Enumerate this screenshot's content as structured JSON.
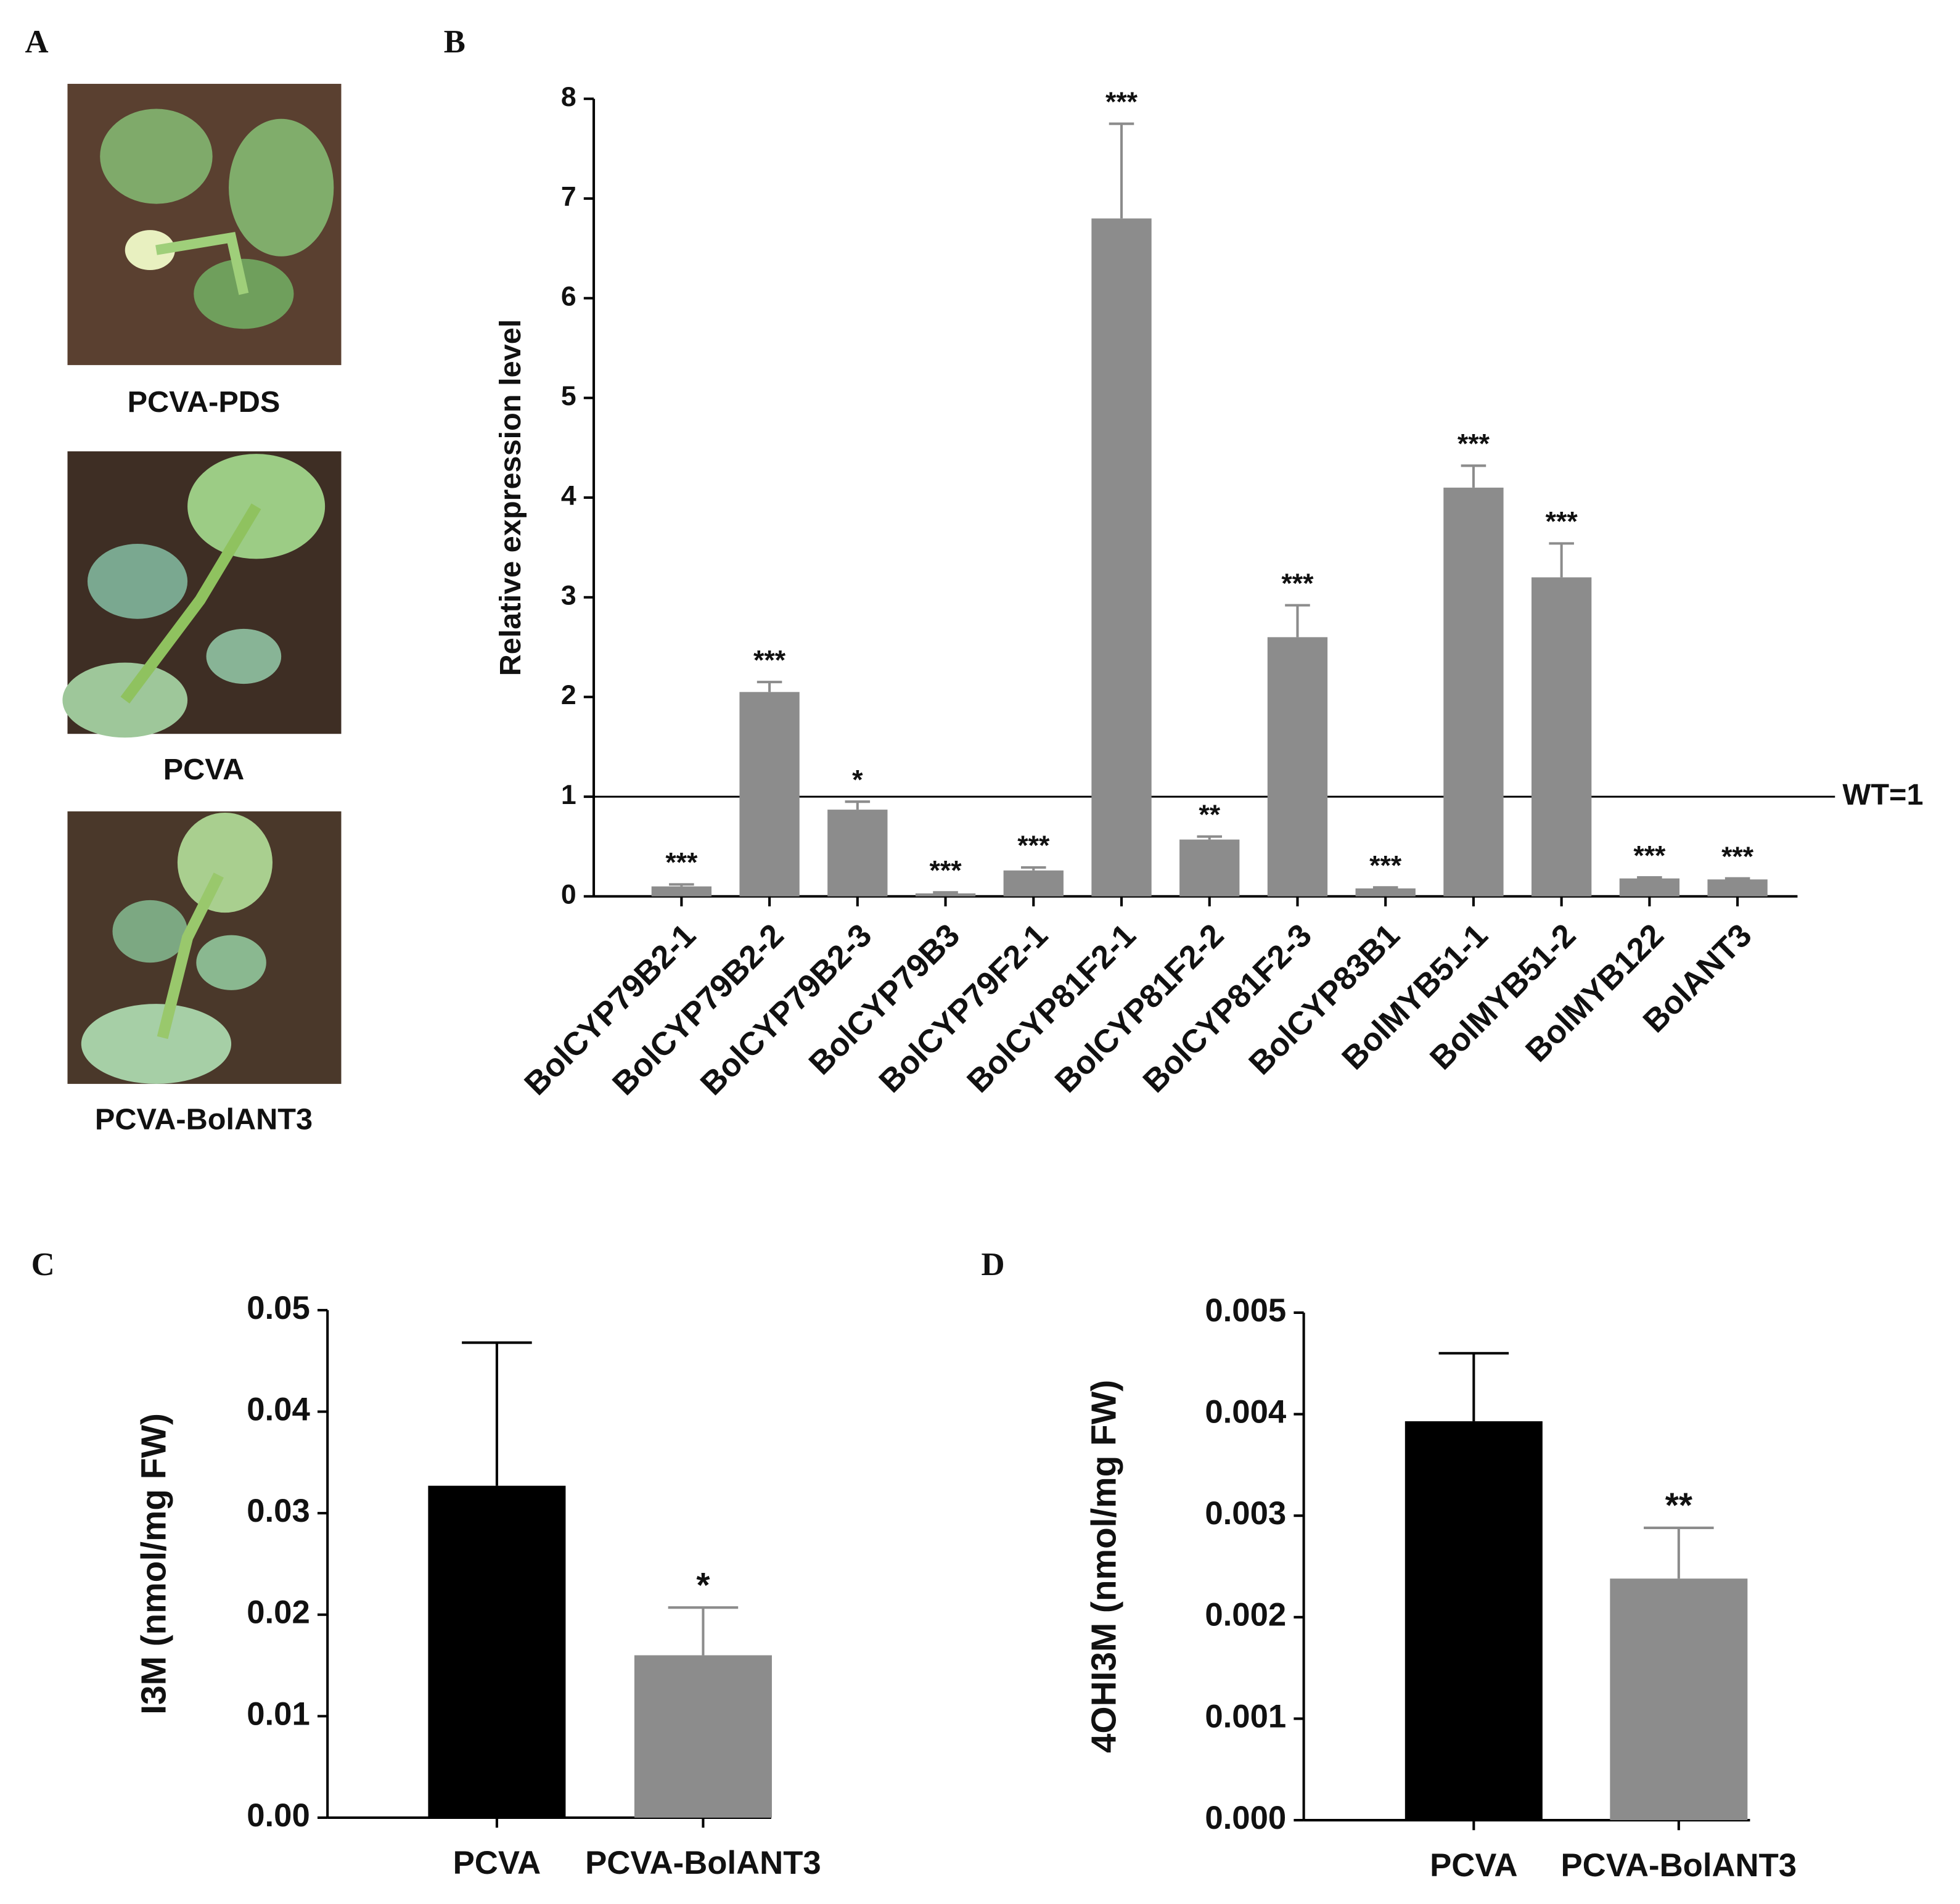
{
  "photo_panel": {
    "panel_label": "A",
    "captions": [
      "PCVA-PDS",
      "PCVA",
      "PCVA-BolANT3"
    ]
  },
  "chart_data": [
    {
      "type": "bar",
      "panel_label": "B",
      "y_label": "Relative expression level",
      "categories": [
        "BolCYP79B2-1",
        "BolCYP79B2-2",
        "BolCYP79B2-3",
        "BolCYP79B3",
        "BolCYP79F2-1",
        "BolCYP81F2-1",
        "BolCYP81F2-2",
        "BolCYP81F2-3",
        "BolCYP83B1",
        "BolMYB51-1",
        "BolMYB51-2",
        "BolMYB122",
        "BolANT3"
      ],
      "values": [
        0.1,
        2.05,
        0.87,
        0.03,
        0.26,
        6.8,
        0.57,
        2.6,
        0.08,
        4.1,
        3.2,
        0.18,
        0.17
      ],
      "errors": [
        0.02,
        0.1,
        0.08,
        0.01,
        0.03,
        0.95,
        0.03,
        0.32,
        0.01,
        0.22,
        0.34,
        0.01,
        0.01
      ],
      "significance": [
        "***",
        "***",
        "*",
        "***",
        "***",
        "***",
        "**",
        "***",
        "***",
        "***",
        "***",
        "***",
        "***"
      ],
      "colors": [
        "#8c8c8c"
      ],
      "reference_line": {
        "value": 1,
        "label": "WT=1"
      },
      "ylim": [
        0,
        8
      ],
      "yticks": [
        0,
        1,
        2,
        3,
        4,
        5,
        6,
        7,
        8
      ]
    },
    {
      "type": "bar",
      "panel_label": "C",
      "y_label": "I3M (nmol/mg FW)",
      "categories": [
        "PCVA",
        "PCVA-BolANT3"
      ],
      "values": [
        0.0327,
        0.016
      ],
      "errors": [
        0.0141,
        0.0047
      ],
      "significance": [
        null,
        "*"
      ],
      "colors": [
        "#000000",
        "#8c8c8c"
      ],
      "ylim": [
        0,
        0.05
      ],
      "yticks": [
        {
          "value": 0,
          "label": "0.00"
        },
        0.01,
        0.02,
        0.03,
        0.04,
        0.05
      ]
    },
    {
      "type": "bar",
      "panel_label": "D",
      "y_label": "4OHI3M (nmol/mg FW)",
      "categories": [
        "PCVA",
        "PCVA-BolANT3"
      ],
      "values": [
        0.00393,
        0.00238
      ],
      "errors": [
        0.00067,
        0.0005
      ],
      "significance": [
        null,
        "**"
      ],
      "colors": [
        "#000000",
        "#8c8c8c"
      ],
      "ylim": [
        0,
        0.005
      ],
      "yticks": [
        {
          "value": 0,
          "label": "0.000"
        },
        0.001,
        0.002,
        0.003,
        0.004,
        0.005
      ]
    }
  ]
}
